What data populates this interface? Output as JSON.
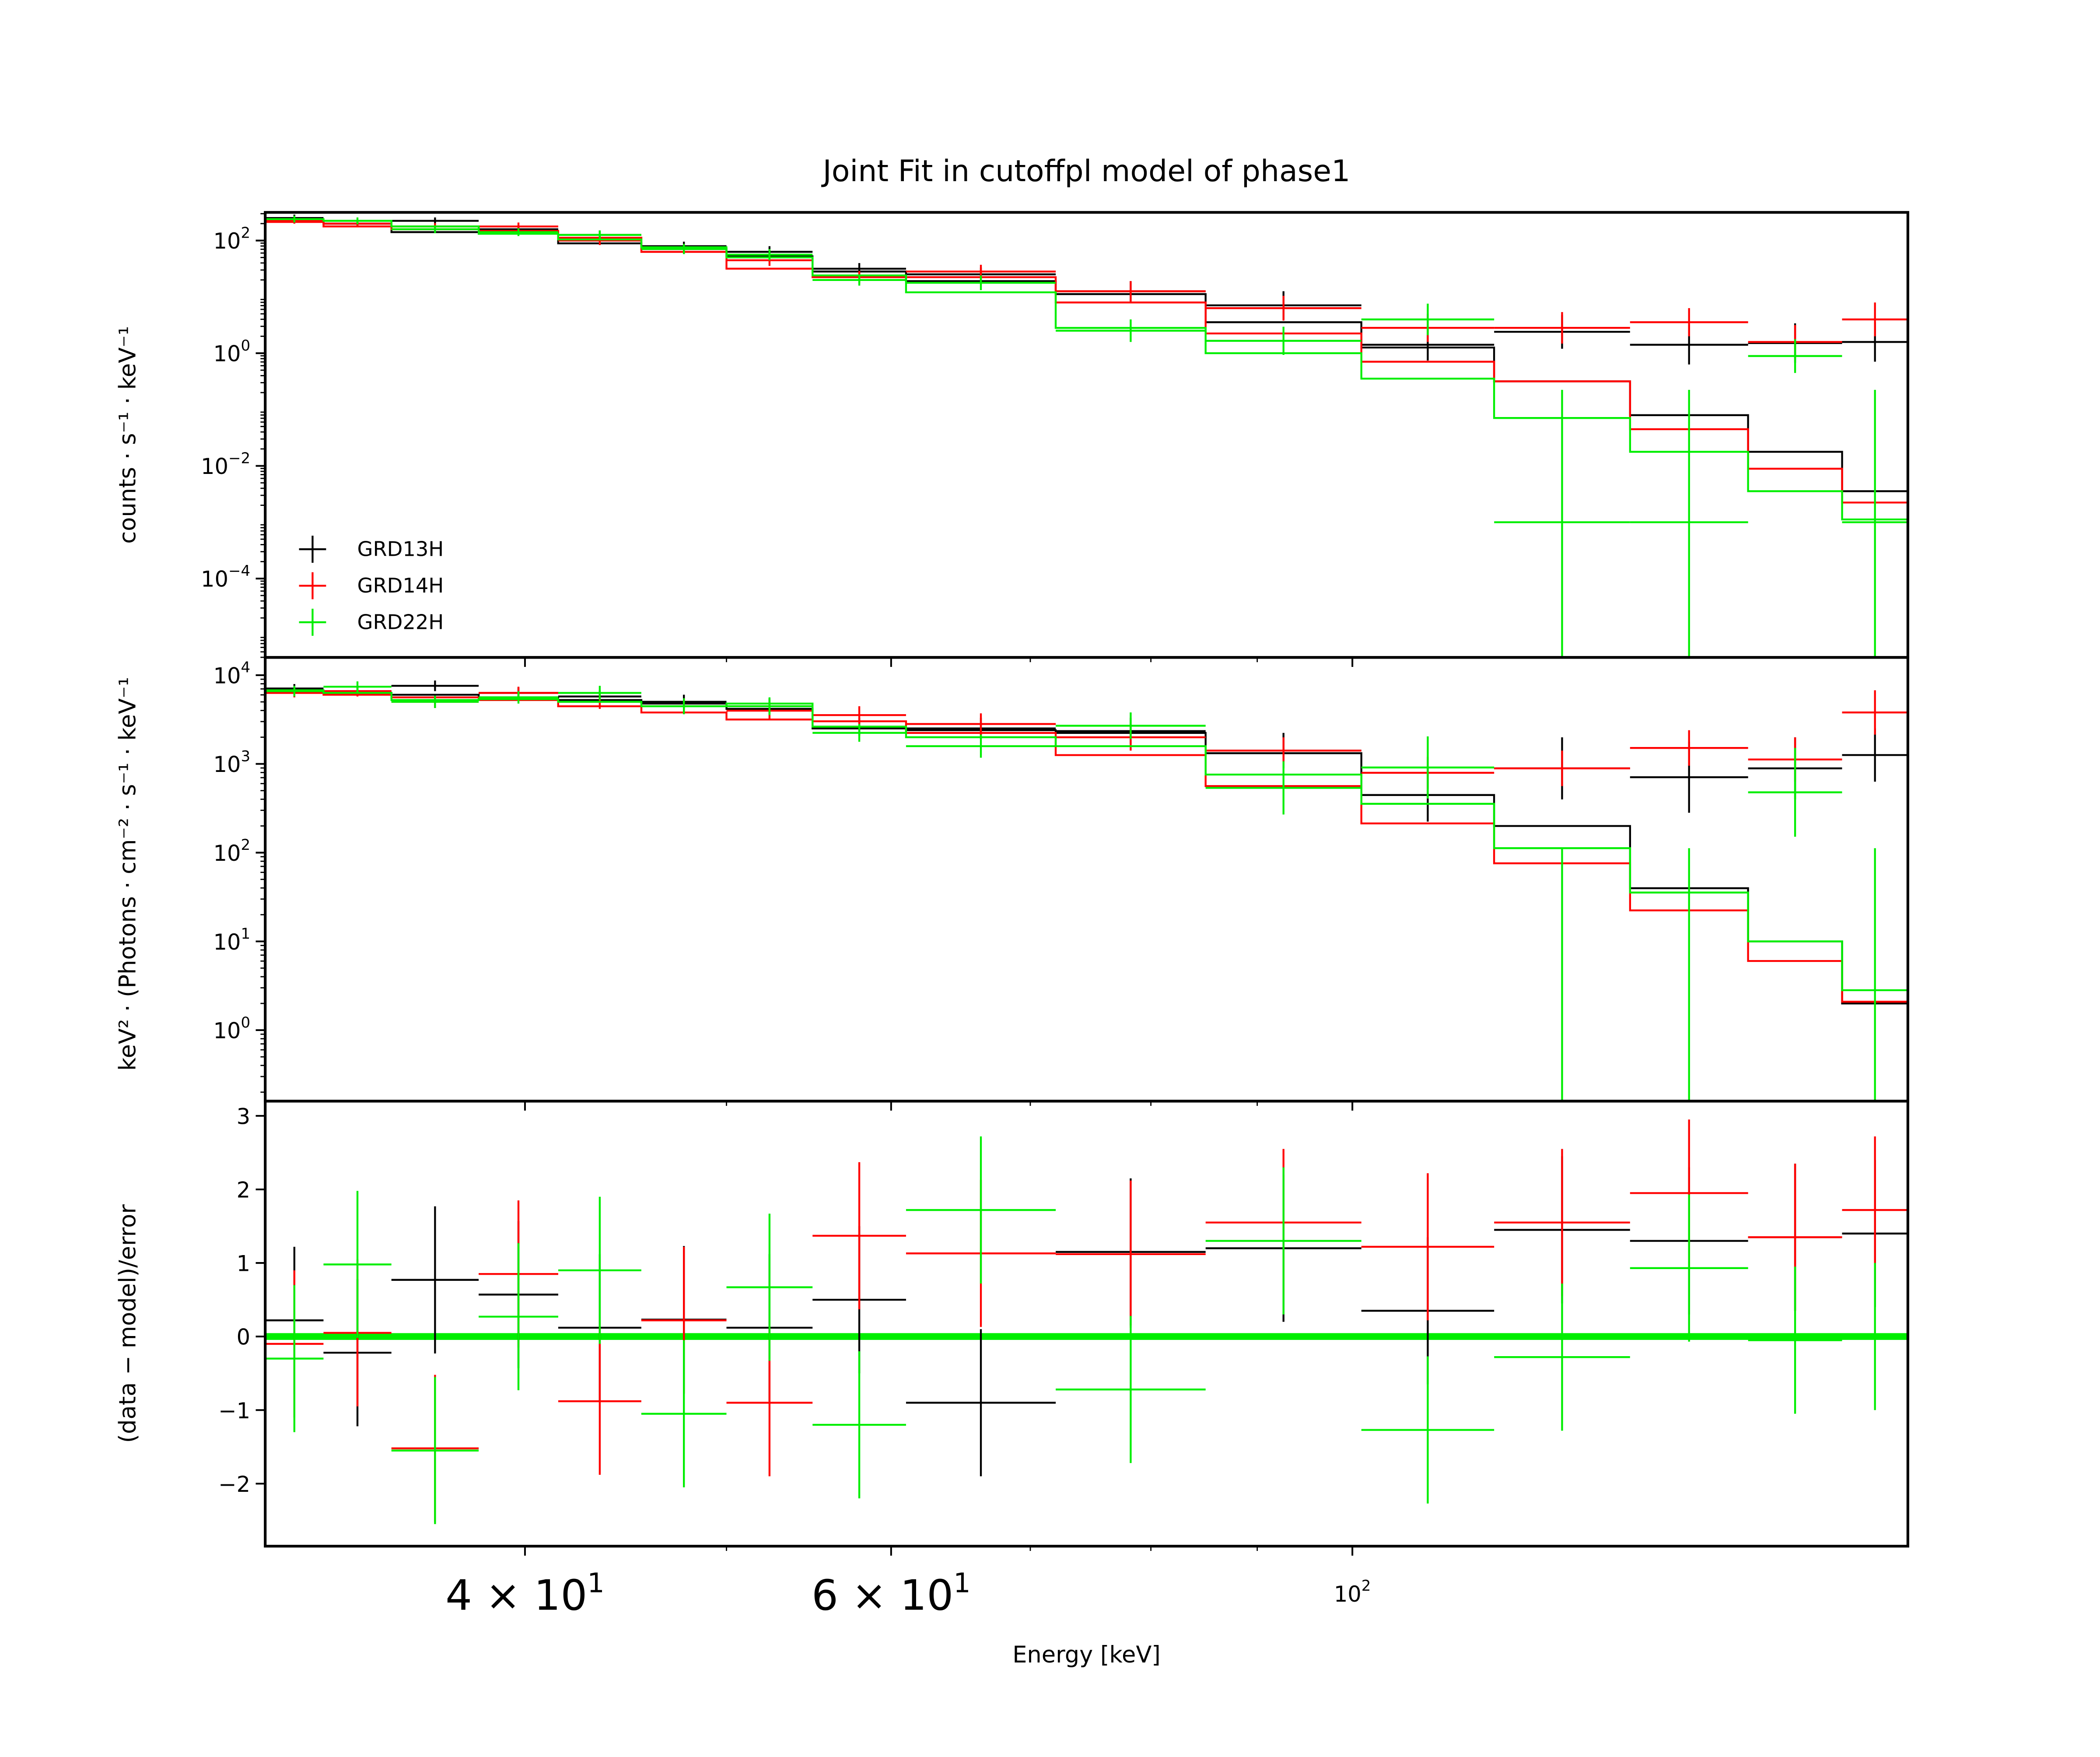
{
  "chart_data": {
    "type": "line",
    "title": "Joint Fit  in cutoffpl model of phase1",
    "xlabel": "Energy [keV]",
    "xscale": "log",
    "xlim": [
      30,
      185
    ],
    "x_tick_labels": [
      {
        "value": 40,
        "mantissa": "4 × 10",
        "exp": "1",
        "style": "big"
      },
      {
        "value": 60,
        "mantissa": "6 × 10",
        "exp": "1",
        "style": "big"
      },
      {
        "value": 100,
        "mantissa": "10",
        "exp": "2",
        "style": "small"
      }
    ],
    "bins": [
      [
        30.0,
        32.0
      ],
      [
        32.0,
        34.5
      ],
      [
        34.5,
        38.0
      ],
      [
        38.0,
        41.5
      ],
      [
        41.5,
        45.5
      ],
      [
        45.5,
        50.0
      ],
      [
        50.0,
        55.0
      ],
      [
        55.0,
        61.0
      ],
      [
        61.0,
        72.0
      ],
      [
        72.0,
        85.0
      ],
      [
        85.0,
        101.0
      ],
      [
        101.0,
        117.0
      ],
      [
        117.0,
        136.0
      ],
      [
        136.0,
        155.0
      ],
      [
        155.0,
        172.0
      ],
      [
        172.0,
        185.0
      ]
    ],
    "legend": [
      {
        "name": "GRD13H",
        "color": "#000000"
      },
      {
        "name": "GRD14H",
        "color": "#ff0000"
      },
      {
        "name": "GRD22H",
        "color": "#00ee00"
      }
    ],
    "panels": [
      {
        "name": "counts",
        "ylabel": "counts · s⁻¹ · keV⁻¹",
        "yscale": "log",
        "ylim_log10": [
          -5.4,
          2.5
        ],
        "y_ticks": [
          {
            "value": 2,
            "base": "10",
            "exp": "2"
          },
          {
            "value": 0,
            "base": "10",
            "exp": "0"
          },
          {
            "value": -2,
            "base": "10",
            "exp": "−2"
          },
          {
            "value": -4,
            "base": "10",
            "exp": "−4"
          }
        ],
        "series": [
          {
            "name": "GRD13H",
            "color": "#000000",
            "model": [
              2.35,
              2.3,
              2.15,
              2.13,
              1.95,
              1.85,
              1.72,
              1.45,
              1.28,
              1.05,
              0.55,
              0.1,
              -0.5,
              -1.1,
              -1.75,
              -2.45
            ],
            "data": [
              2.4,
              2.3,
              2.35,
              2.2,
              2.1,
              1.9,
              1.8,
              1.5,
              1.4,
              1.1,
              0.85,
              0.15,
              0.38,
              0.15,
              0.18,
              0.2
            ],
            "err": [
              0.06,
              0.06,
              0.06,
              0.07,
              0.08,
              0.08,
              0.1,
              0.1,
              0.12,
              0.18,
              0.25,
              0.28,
              0.3,
              0.35,
              0.35,
              0.35
            ]
          },
          {
            "name": "GRD14H",
            "color": "#ff0000",
            "model": [
              2.33,
              2.25,
              2.2,
              2.17,
              2.05,
              1.8,
              1.5,
              1.35,
              1.35,
              0.9,
              0.35,
              -0.15,
              -0.5,
              -1.35,
              -2.05,
              -2.65
            ],
            "data": [
              2.35,
              2.3,
              2.25,
              2.25,
              2.0,
              1.85,
              1.65,
              1.35,
              1.45,
              1.1,
              0.8,
              0.45,
              0.45,
              0.55,
              0.2,
              0.6
            ],
            "err": [
              0.05,
              0.06,
              0.06,
              0.07,
              0.08,
              0.09,
              0.1,
              0.11,
              0.12,
              0.18,
              0.22,
              0.25,
              0.28,
              0.25,
              0.3,
              0.3
            ]
          },
          {
            "name": "GRD22H",
            "color": "#00ee00",
            "model": [
              2.38,
              2.35,
              2.25,
              2.12,
              2.02,
              1.88,
              1.7,
              1.38,
              1.08,
              0.45,
              0.0,
              -0.45,
              -1.15,
              -1.75,
              -2.45,
              -2.95
            ],
            "data": [
              2.38,
              2.35,
              2.2,
              2.15,
              2.1,
              1.85,
              1.75,
              1.3,
              1.25,
              0.4,
              0.22,
              0.6,
              -3.0,
              -3.0,
              -0.05,
              -3.0
            ],
            "err": [
              0.06,
              0.06,
              0.07,
              0.07,
              0.08,
              0.09,
              0.1,
              0.1,
              0.13,
              0.2,
              0.25,
              0.28,
              0.0,
              0.0,
              0.3,
              0.0
            ]
          }
        ]
      },
      {
        "name": "eeuf",
        "ylabel": "keV² · (Photons · cm⁻² · s⁻¹ · keV⁻¹",
        "yscale": "log",
        "ylim_log10": [
          -0.8,
          4.2
        ],
        "y_ticks": [
          {
            "value": 4,
            "base": "10",
            "exp": "4"
          },
          {
            "value": 3,
            "base": "10",
            "exp": "3"
          },
          {
            "value": 2,
            "base": "10",
            "exp": "2"
          },
          {
            "value": 1,
            "base": "10",
            "exp": "1"
          },
          {
            "value": 0,
            "base": "10",
            "exp": "0"
          }
        ],
        "series": [
          {
            "name": "GRD13H",
            "color": "#000000",
            "model": [
              3.82,
              3.8,
              3.78,
              3.75,
              3.72,
              3.68,
              3.62,
              3.4,
              3.38,
              3.35,
              3.12,
              2.65,
              2.3,
              1.6,
              1.0,
              0.3
            ],
            "data": [
              3.85,
              3.82,
              3.88,
              3.8,
              3.76,
              3.7,
              3.65,
              3.42,
              3.4,
              3.37,
              3.15,
              2.65,
              2.95,
              2.85,
              2.95,
              3.1
            ],
            "err": [
              0.05,
              0.05,
              0.06,
              0.06,
              0.07,
              0.08,
              0.09,
              0.1,
              0.12,
              0.15,
              0.2,
              0.3,
              0.35,
              0.4,
              0.35,
              0.3
            ]
          },
          {
            "name": "GRD14H",
            "color": "#ff0000",
            "model": [
              3.8,
              3.78,
              3.75,
              3.72,
              3.65,
              3.58,
              3.5,
              3.48,
              3.35,
              3.1,
              2.75,
              2.33,
              1.88,
              1.35,
              0.78,
              0.32
            ],
            "data": [
              3.8,
              3.82,
              3.7,
              3.8,
              3.7,
              3.65,
              3.6,
              3.55,
              3.45,
              3.3,
              3.15,
              2.9,
              2.95,
              3.18,
              3.05,
              3.58
            ],
            "err": [
              0.05,
              0.06,
              0.07,
              0.07,
              0.08,
              0.09,
              0.1,
              0.1,
              0.12,
              0.15,
              0.15,
              0.18,
              0.2,
              0.2,
              0.25,
              0.25
            ]
          },
          {
            "name": "GRD22H",
            "color": "#00ee00",
            "model": [
              3.83,
              3.8,
              3.72,
              3.73,
              3.7,
              3.65,
              3.68,
              3.42,
              3.3,
              3.2,
              2.88,
              2.55,
              2.05,
              1.55,
              1.0,
              0.45
            ],
            "data": [
              3.82,
              3.87,
              3.7,
              3.75,
              3.8,
              3.65,
              3.65,
              3.35,
              3.2,
              3.43,
              2.73,
              2.96,
              -0.8,
              -0.8,
              2.68,
              -0.8
            ],
            "err": [
              0.06,
              0.06,
              0.07,
              0.07,
              0.08,
              0.09,
              0.1,
              0.1,
              0.13,
              0.15,
              0.3,
              0.35,
              0.0,
              0.0,
              0.5,
              0.0
            ]
          }
        ]
      },
      {
        "name": "residuals",
        "ylabel": "(data − model)/error",
        "yscale": "linear",
        "ylim": [
          -2.85,
          3.2
        ],
        "y_ticks": [
          {
            "value": 3,
            "label": "3"
          },
          {
            "value": 2,
            "label": "2"
          },
          {
            "value": 1,
            "label": "1"
          },
          {
            "value": 0,
            "label": "0"
          },
          {
            "value": -1,
            "label": "−1"
          },
          {
            "value": -2,
            "label": "−2"
          }
        ],
        "zero_line_color": "#00ee00",
        "series": [
          {
            "name": "GRD13H",
            "color": "#000000",
            "values": [
              0.22,
              -0.22,
              0.77,
              0.57,
              0.12,
              0.23,
              0.12,
              0.5,
              -0.9,
              1.15,
              1.2,
              0.35,
              1.45,
              1.3,
              1.35,
              1.4
            ]
          },
          {
            "name": "GRD14H",
            "color": "#ff0000",
            "values": [
              -0.1,
              0.05,
              -1.52,
              0.85,
              -0.88,
              0.22,
              -0.9,
              1.37,
              1.13,
              1.12,
              1.55,
              1.22,
              1.55,
              1.95,
              1.35,
              1.72
            ]
          },
          {
            "name": "GRD22H",
            "color": "#00ee00",
            "values": [
              -0.3,
              0.98,
              -1.55,
              0.27,
              0.9,
              -1.05,
              0.67,
              -1.2,
              1.72,
              -0.72,
              1.3,
              -1.27,
              -0.28,
              0.93,
              -0.05,
              0.0
            ]
          }
        ]
      }
    ]
  }
}
